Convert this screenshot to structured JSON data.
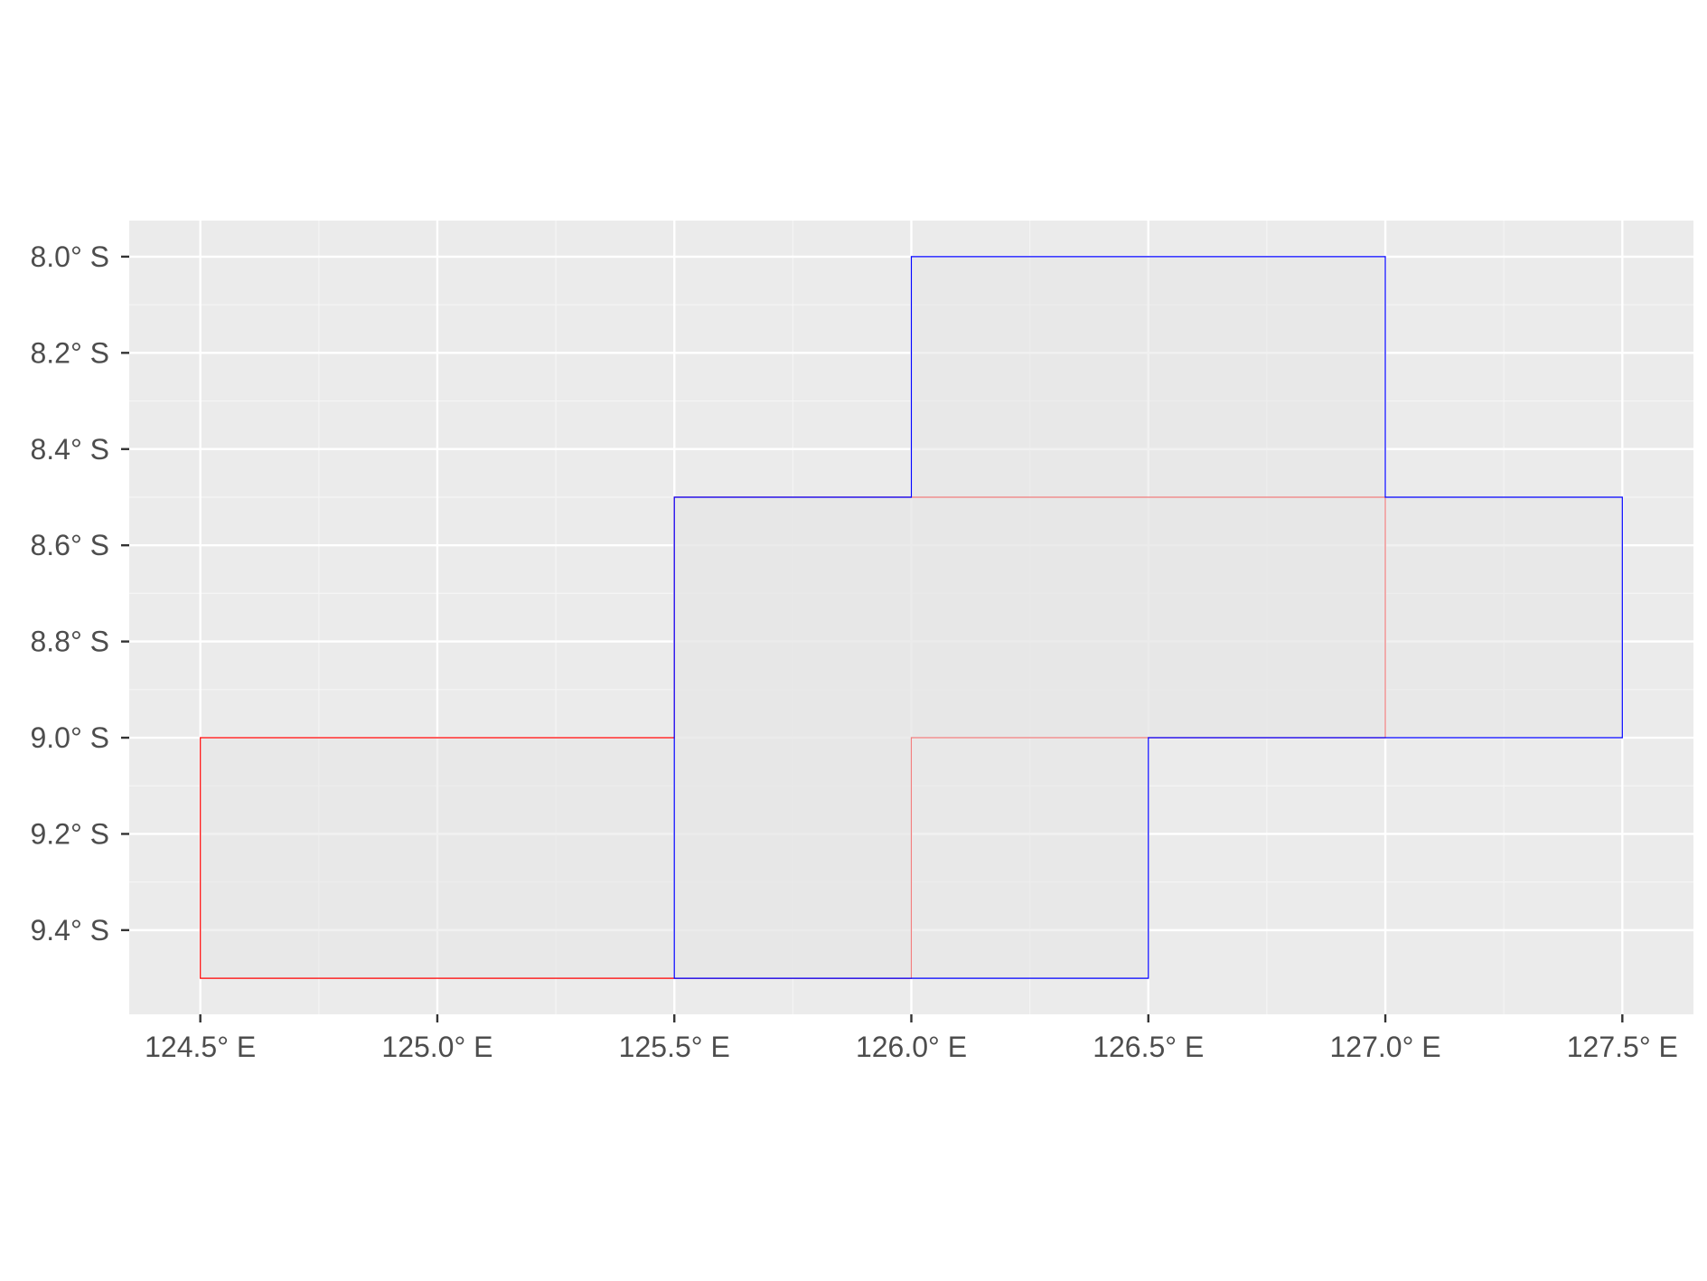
{
  "chart_data": {
    "type": "map",
    "title": "",
    "xlabel": "",
    "ylabel": "",
    "grid": true,
    "xlim": [
      124.35,
      127.65
    ],
    "ylim": [
      -9.575,
      -7.925
    ],
    "x_ticks": [
      {
        "value": 124.5,
        "label": "124.5° E"
      },
      {
        "value": 125.0,
        "label": "125.0° E"
      },
      {
        "value": 125.5,
        "label": "125.5° E"
      },
      {
        "value": 126.0,
        "label": "126.0° E"
      },
      {
        "value": 126.5,
        "label": "126.5° E"
      },
      {
        "value": 127.0,
        "label": "127.0° E"
      },
      {
        "value": 127.5,
        "label": "127.5° E"
      }
    ],
    "y_ticks": [
      {
        "value": -8.0,
        "label": "8.0° S"
      },
      {
        "value": -8.2,
        "label": "8.2° S"
      },
      {
        "value": -8.4,
        "label": "8.4° S"
      },
      {
        "value": -8.6,
        "label": "8.6° S"
      },
      {
        "value": -8.8,
        "label": "8.8° S"
      },
      {
        "value": -9.0,
        "label": "9.0° S"
      },
      {
        "value": -9.2,
        "label": "9.2° S"
      },
      {
        "value": -9.4,
        "label": "9.4° S"
      }
    ],
    "polygons": [
      {
        "stroke": "#ff0000",
        "fill": "#e6e6e6",
        "coords": [
          [
            124.5,
            -9.0
          ],
          [
            125.5,
            -9.0
          ],
          [
            125.5,
            -8.5
          ],
          [
            127.0,
            -8.5
          ],
          [
            127.0,
            -9.0
          ],
          [
            126.0,
            -9.0
          ],
          [
            126.0,
            -9.5
          ],
          [
            124.5,
            -9.5
          ]
        ]
      },
      {
        "stroke": "#0000ff",
        "fill": "#e6e6e6",
        "coords": [
          [
            126.0,
            -8.0
          ],
          [
            127.0,
            -8.0
          ],
          [
            127.0,
            -8.5
          ],
          [
            127.5,
            -8.5
          ],
          [
            127.5,
            -9.0
          ],
          [
            126.5,
            -9.0
          ],
          [
            126.5,
            -9.5
          ],
          [
            125.5,
            -9.5
          ],
          [
            125.5,
            -8.5
          ],
          [
            126.0,
            -8.5
          ]
        ]
      }
    ],
    "colors": {
      "panel_background": "#ebebeb",
      "grid_major": "#ffffff",
      "grid_minor": "#f5f5f5",
      "tick_mark": "#333333"
    }
  }
}
